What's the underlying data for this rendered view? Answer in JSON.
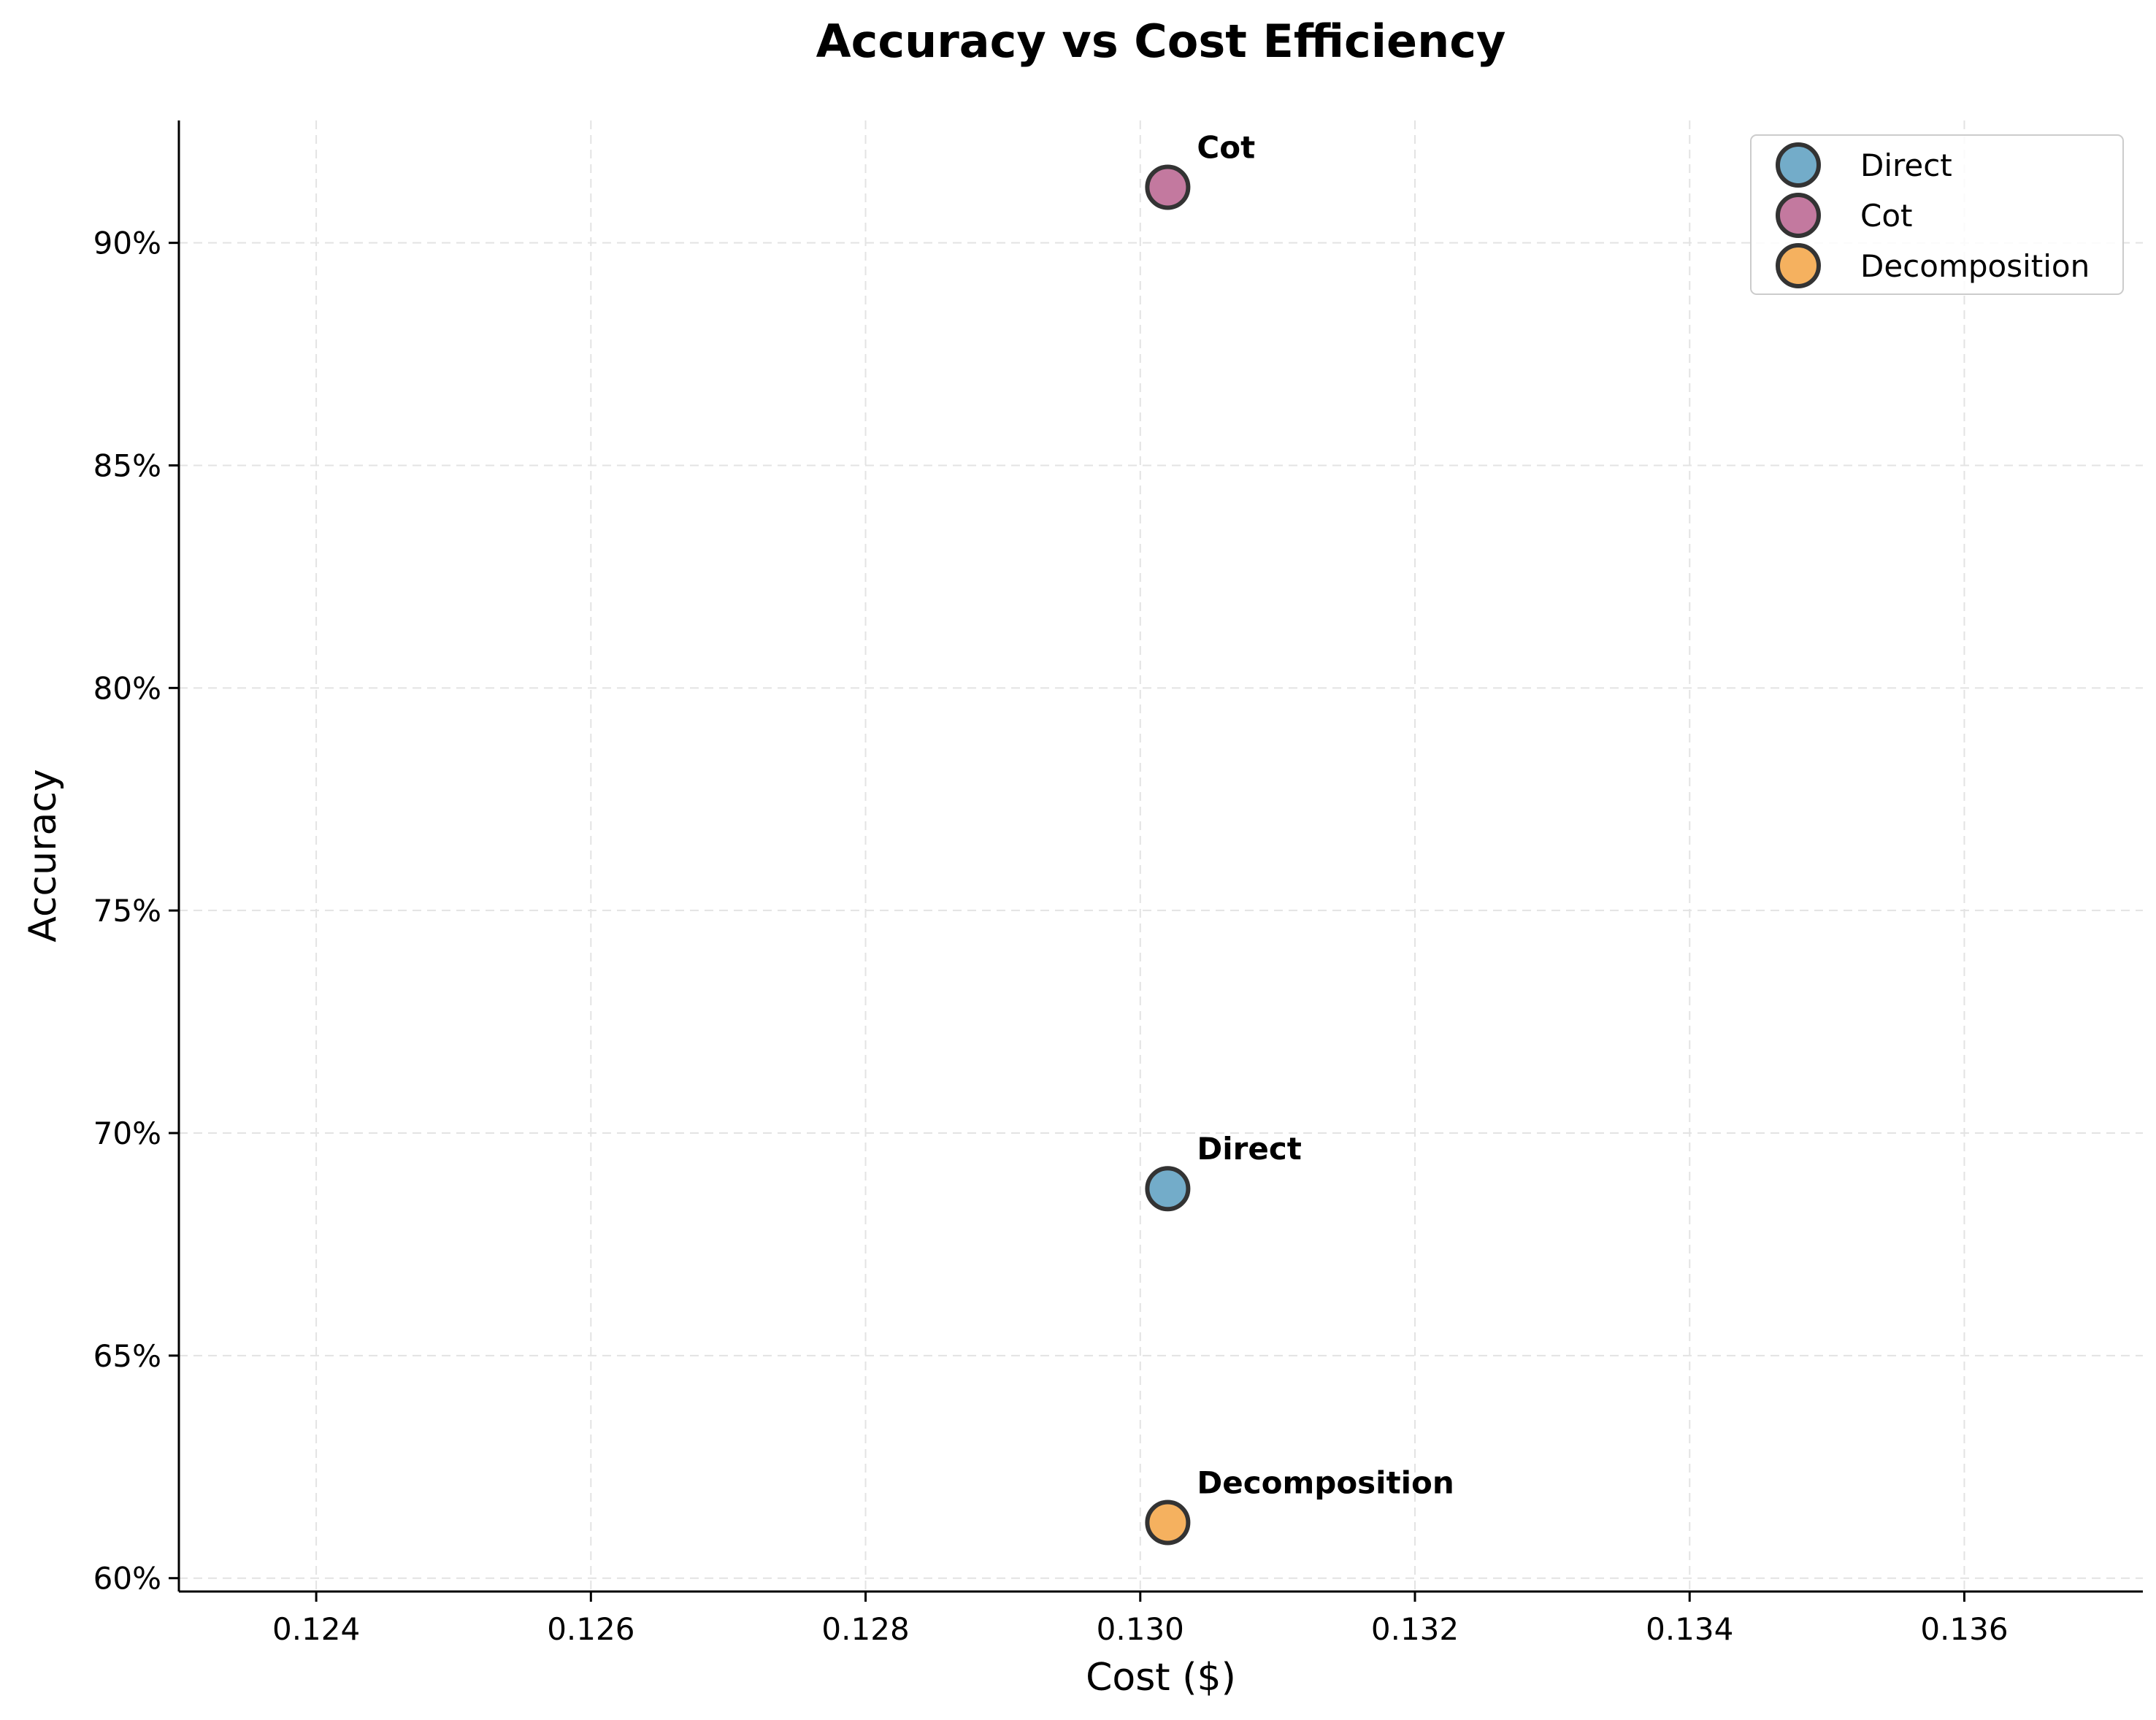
{
  "chart_data": {
    "type": "scatter",
    "title": "Accuracy vs Cost Efficiency",
    "xlabel": "Cost ($)",
    "ylabel": "Accuracy",
    "xlim": [
      0.123,
      0.1373
    ],
    "ylim": [
      0.597,
      0.9275
    ],
    "xticks": [
      0.124,
      0.126,
      0.128,
      0.13,
      0.132,
      0.134,
      0.136
    ],
    "xtick_labels": [
      "0.124",
      "0.126",
      "0.128",
      "0.130",
      "0.132",
      "0.134",
      "0.136"
    ],
    "yticks": [
      0.6,
      0.65,
      0.7,
      0.75,
      0.8,
      0.85,
      0.9
    ],
    "ytick_labels": [
      "60%",
      "65%",
      "70%",
      "75%",
      "80%",
      "85%",
      "90%"
    ],
    "grid": true,
    "legend_position": "top-right",
    "series": [
      {
        "name": "Direct",
        "color": "#5b9ec0",
        "points": [
          {
            "x": 0.1302,
            "y": 0.6875,
            "label": "Direct"
          }
        ]
      },
      {
        "name": "Cot",
        "color": "#b8628e",
        "points": [
          {
            "x": 0.1302,
            "y": 0.9125,
            "label": "Cot"
          }
        ]
      },
      {
        "name": "Decomposition",
        "color": "#f3a343",
        "points": [
          {
            "x": 0.1302,
            "y": 0.6125,
            "label": "Decomposition"
          }
        ]
      }
    ]
  }
}
